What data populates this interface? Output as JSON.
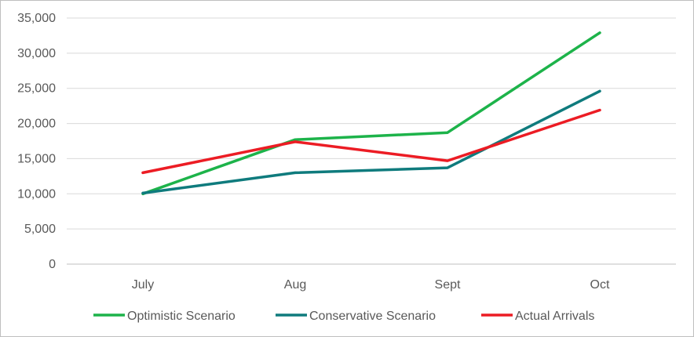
{
  "chart_data": {
    "type": "line",
    "categories": [
      "July",
      "Aug",
      "Sept",
      "Oct"
    ],
    "series": [
      {
        "name": "Optimistic Scenario",
        "values": [
          10000,
          17700,
          18700,
          32900
        ],
        "color": "#1db34a"
      },
      {
        "name": "Conservative Scenario",
        "values": [
          10100,
          13000,
          13700,
          24600
        ],
        "color": "#0f7b7d"
      },
      {
        "name": "Actual Arrivals",
        "values": [
          13000,
          17400,
          14700,
          21900
        ],
        "color": "#ec1c24"
      }
    ],
    "ylim": [
      0,
      35000
    ],
    "yticks": [
      "0",
      "5,000",
      "10,000",
      "15,000",
      "20,000",
      "25,000",
      "30,000",
      "35,000"
    ],
    "grid": true,
    "legend_position": "bottom"
  }
}
